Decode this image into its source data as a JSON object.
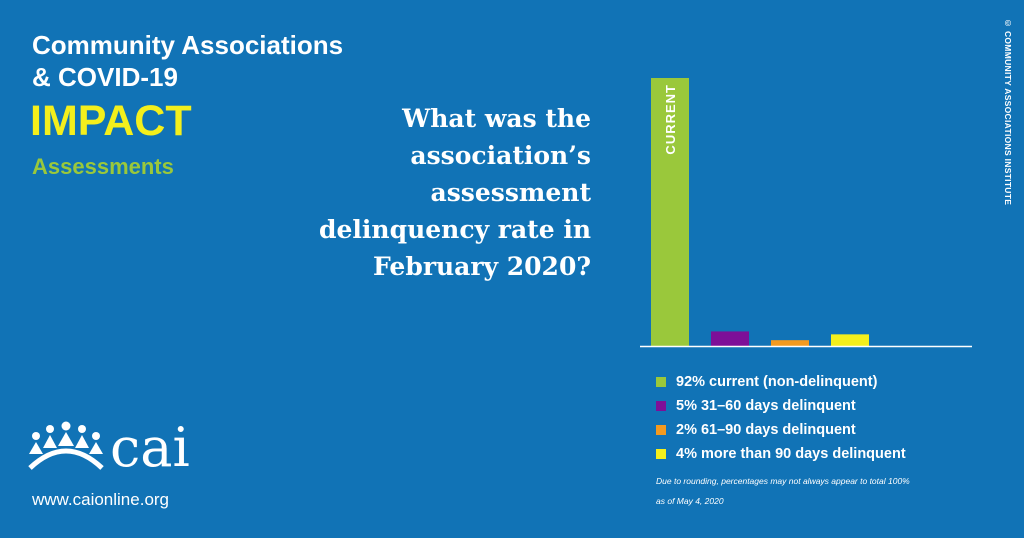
{
  "header": {
    "title_line1": "Community Associations",
    "title_line2": "& COVID-19",
    "impact": "IMPACT",
    "subtitle": "Assessments"
  },
  "question": "What was the association’s assessment delinquency rate in February 2020?",
  "brand": {
    "logo_word": "cai",
    "website": "www.caionline.org",
    "copyright": "© COMMUNITY ASSOCIATIONS INSTITUTE"
  },
  "footnotes": {
    "rounding": "Due to rounding, percentages may not always appear to total 100%",
    "date": "as of May 4, 2020"
  },
  "chart_data": {
    "type": "bar",
    "title": "",
    "xlabel": "",
    "ylabel": "",
    "ylim": [
      0,
      92
    ],
    "grid": false,
    "legend_placement": "bottom",
    "categories": [
      "current (non-delinquent)",
      "31–60 days delinquent",
      "61–90 days delinquent",
      "more than 90 days delinquent"
    ],
    "values": [
      92,
      5,
      2,
      4
    ],
    "bar_labels": [
      "CURRENT",
      "",
      "",
      ""
    ],
    "colors": [
      "#9ac83b",
      "#7d0f98",
      "#f39a1f",
      "#f4ef1c"
    ],
    "legend": [
      "92% current (non-delinquent)",
      "5% 31–60 days delinquent",
      "2% 61–90 days delinquent",
      "4% more than 90 days delinquent"
    ]
  },
  "colors": {
    "background": "#1173b6",
    "title": "#ffffff",
    "impact": "#f4ef1c",
    "subtitle": "#9ac83b"
  }
}
